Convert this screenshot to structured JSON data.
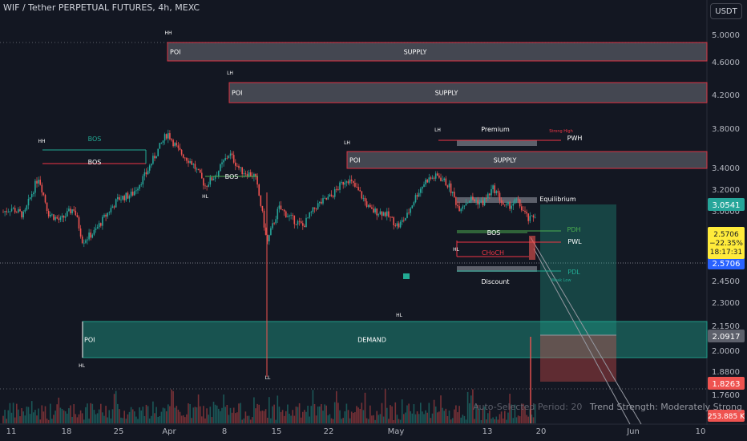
{
  "header": {
    "symbol": "WIF / Tether PERPETUAL FUTURES, 4h, MEXC",
    "currency_button": "USDT"
  },
  "footer": {
    "period": "Auto-Selected Period: 20",
    "strength": "Trend Strength: Moderately Strong"
  },
  "colors": {
    "background": "#131722",
    "up": "#26a69a",
    "down": "#ef5350",
    "supply_fill": "#4a4d57",
    "supply_border": "#f23645",
    "demand": "#22ab94"
  },
  "chart_data": {
    "type": "candlestick",
    "y_scale": "log",
    "ylim": [
      1.69,
      5.2
    ],
    "y_ticks": [
      "5.0000",
      "4.6000",
      "4.2000",
      "3.8000",
      "3.4000",
      "3.2000",
      "3.0000",
      "2.7500",
      "2.4500",
      "2.3000",
      "2.1500",
      "2.0000",
      "1.8800",
      "1.7600"
    ],
    "x_ticks": [
      "11",
      "18",
      "25",
      "Apr",
      "8",
      "15",
      "22",
      "May",
      "13",
      "20",
      "Jun",
      "10"
    ],
    "price_labels": [
      {
        "value": 3.0541,
        "text": "3.0541",
        "color": "#26a69a"
      },
      {
        "value": 2.5706,
        "text": "2.5706",
        "color": "#2962ff"
      },
      {
        "value": 2.0917,
        "text": "2.0917",
        "color": "#5d606b"
      },
      {
        "value": 1.8263,
        "text": "1.8263",
        "color": "#ef5350"
      }
    ],
    "current_badge": [
      "2.5706",
      "−22.35%",
      "18:17:31"
    ],
    "volume_label": "253.885 K",
    "zones": [
      {
        "label": "SUPPLY",
        "poi": "POI"
      },
      {
        "label": "SUPPLY",
        "poi": "POI"
      },
      {
        "label": "SUPPLY",
        "poi": "POI"
      },
      {
        "label": "DEMAND",
        "poi": "POI"
      }
    ],
    "annotations": [
      "HH",
      "LH",
      "HH",
      "LH",
      "LH",
      "HL",
      "HL",
      "HL",
      "HL",
      "LL",
      "BOS",
      "BOS",
      "BOS",
      "BOS",
      "CHoCH",
      "Premium",
      "Equilibrium",
      "Discount",
      "PWH",
      "PWL",
      "PDH",
      "PDL",
      "Strong High",
      "Weak Low"
    ]
  }
}
